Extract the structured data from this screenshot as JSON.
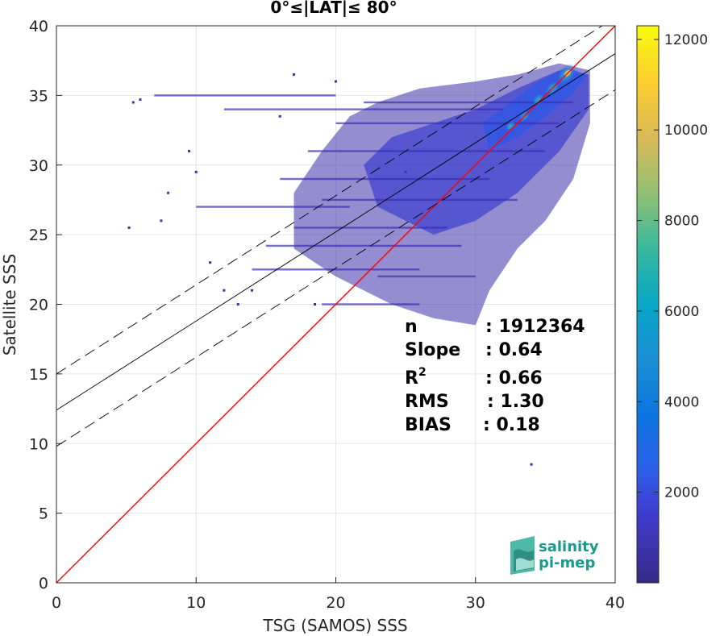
{
  "chart_data": {
    "type": "heatmap",
    "title": "0°≤|LAT|≤ 80°",
    "xlabel": "TSG (SAMOS) SSS",
    "ylabel": "Satellite SSS",
    "xlim": [
      0,
      40
    ],
    "ylim": [
      0,
      40
    ],
    "xticks": [
      "0",
      "10",
      "20",
      "30",
      "40"
    ],
    "yticks": [
      "0",
      "5",
      "10",
      "15",
      "20",
      "25",
      "30",
      "35",
      "40"
    ],
    "grid": true,
    "colorbar": {
      "colormap": "parula",
      "range": [
        0,
        12300
      ],
      "ticks": [
        "2000",
        "4000",
        "6000",
        "8000",
        "10000",
        "12000"
      ],
      "tick_values": [
        2000,
        4000,
        6000,
        8000,
        10000,
        12000
      ]
    },
    "lines": [
      {
        "name": "one-to-one",
        "style": "solid",
        "color": "#ff0000",
        "intercept": 0,
        "slope": 1
      },
      {
        "name": "fit",
        "style": "solid",
        "color": "#000000",
        "intercept": 12.4,
        "slope": 0.64
      },
      {
        "name": "fit-upper",
        "style": "dashed",
        "color": "#000000",
        "intercept": 15.0,
        "slope": 0.64
      },
      {
        "name": "fit-lower",
        "style": "dashed",
        "color": "#000000",
        "intercept": 9.8,
        "slope": 0.64
      }
    ],
    "density_core": [
      {
        "x": 36.5,
        "y": 36.5,
        "count": 9000
      },
      {
        "x": 35.5,
        "y": 35.5,
        "count": 5500
      },
      {
        "x": 34.5,
        "y": 34.7,
        "count": 4000
      },
      {
        "x": 33.5,
        "y": 33.5,
        "count": 3000
      },
      {
        "x": 32.5,
        "y": 32.8,
        "count": 2500
      }
    ],
    "stats": [
      {
        "label": "n",
        "value": ": 1912364"
      },
      {
        "label": "Slope",
        "value": ": 0.64"
      },
      {
        "label": "R",
        "sup": "2",
        "value": ": 0.66"
      },
      {
        "label": "RMS",
        "value": ": 1.30"
      },
      {
        "label": "BIAS",
        "value": ": 0.18"
      }
    ]
  },
  "logo": {
    "line1": "salinity",
    "line2": "pi-mep",
    "color": "#1a9a8c"
  }
}
